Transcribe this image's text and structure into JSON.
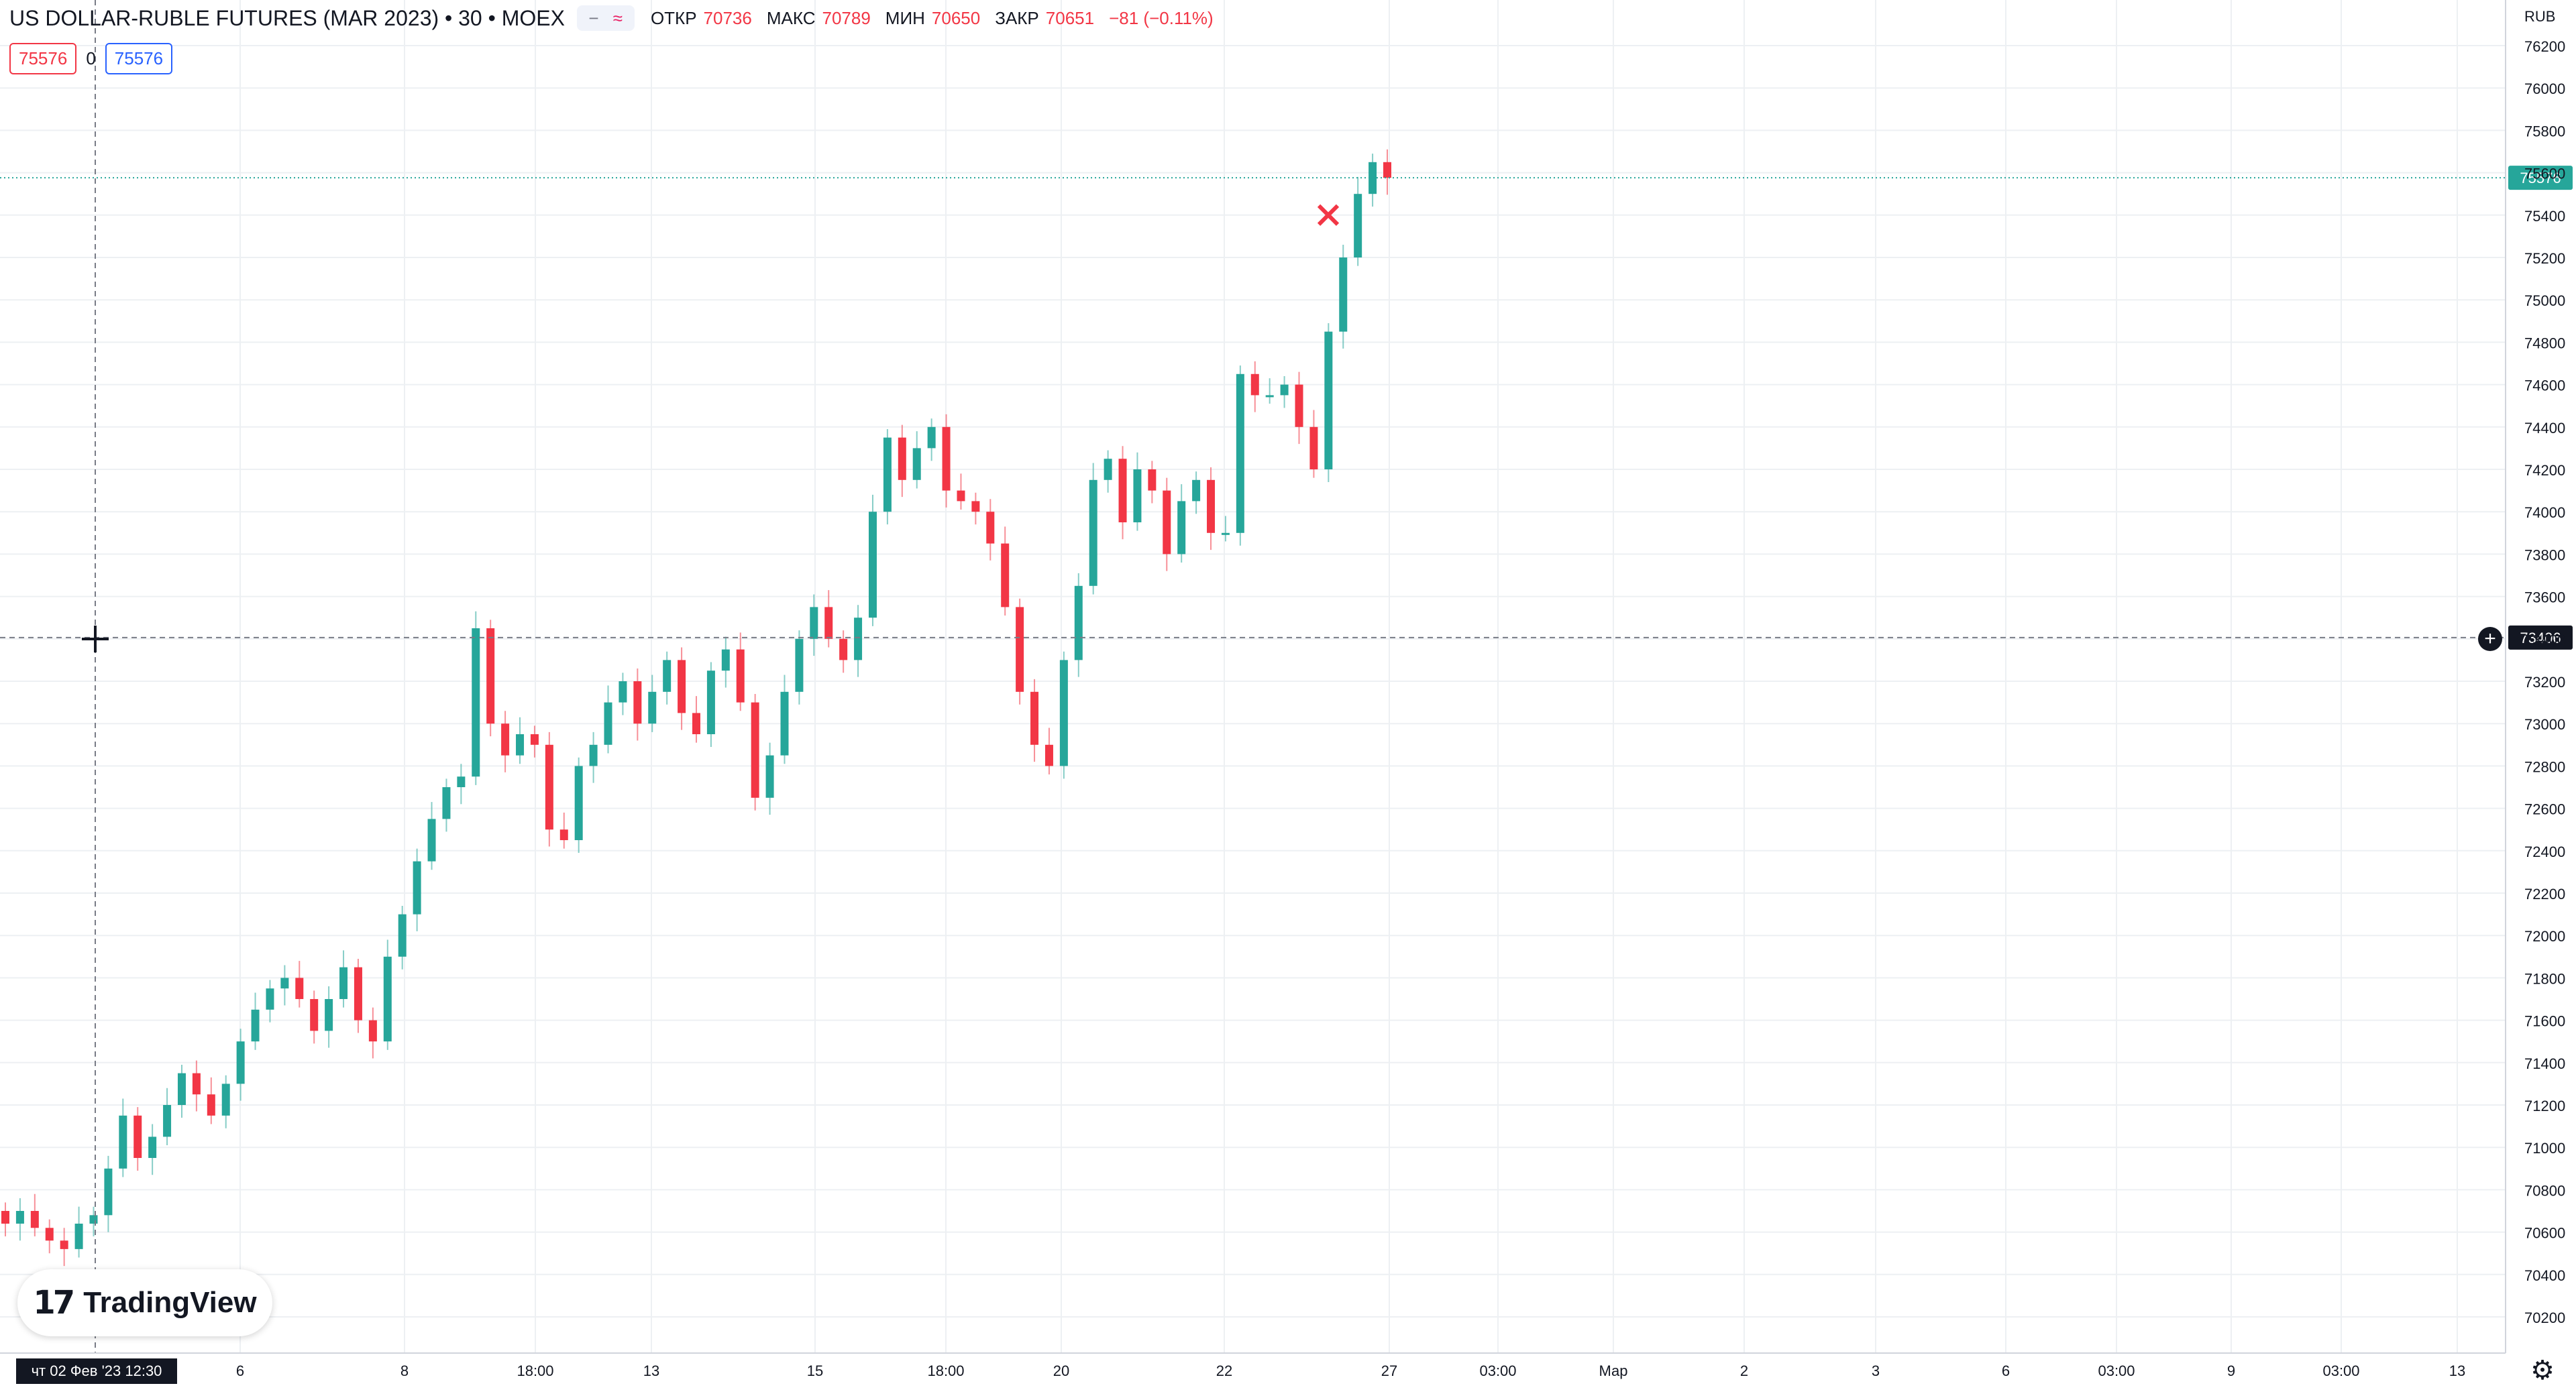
{
  "header": {
    "title": "US DOLLAR-RUBLE FUTURES (MAR 2023) • 30 • MOEX",
    "icons": [
      "minus-icon",
      "wave-icon"
    ],
    "ohlc": [
      {
        "label": "ОТКР",
        "value": "70736"
      },
      {
        "label": "МАКС",
        "value": "70789"
      },
      {
        "label": "МИН",
        "value": "70650"
      },
      {
        "label": "ЗАКР",
        "value": "70651"
      }
    ],
    "change": "−81 (−0.11%)"
  },
  "trade_buttons": {
    "sell": "75576",
    "spread": "0",
    "buy": "75576"
  },
  "currency": "RUB",
  "logo_text": "TradingView",
  "colors": {
    "up": "#26a69a",
    "down": "#f23645",
    "grid": "#edf0f3",
    "accent": "#2962ff"
  },
  "chart_data": {
    "type": "candlestick",
    "title": "US DOLLAR-RUBLE FUTURES (MAR 2023)",
    "interval": "30",
    "exchange": "MOEX",
    "ylim": [
      70000,
      76400
    ],
    "y_ticks": [
      70200,
      70400,
      70600,
      70800,
      71000,
      71200,
      71400,
      71600,
      71800,
      72000,
      72200,
      72400,
      72600,
      72800,
      73000,
      73200,
      73400,
      73600,
      73800,
      74000,
      74200,
      74400,
      74600,
      74800,
      75000,
      75200,
      75400,
      75600,
      75800,
      76000,
      76200
    ],
    "x_ticks": [
      {
        "label": "чт 02 Фев '23   12:30",
        "kind": "cursor"
      },
      {
        "label": "6"
      },
      {
        "label": "8"
      },
      {
        "label": "18:00"
      },
      {
        "label": "13"
      },
      {
        "label": "15"
      },
      {
        "label": "18:00"
      },
      {
        "label": "20"
      },
      {
        "label": "22"
      },
      {
        "label": "27"
      },
      {
        "label": "03:00"
      },
      {
        "label": "Мар"
      },
      {
        "label": "2"
      },
      {
        "label": "3"
      },
      {
        "label": "6"
      },
      {
        "label": "03:00"
      },
      {
        "label": "9"
      },
      {
        "label": "03:00"
      },
      {
        "label": "13"
      }
    ],
    "last_price": 75576,
    "crosshair_price": 73406,
    "marker": {
      "type": "cross",
      "price": 75400
    },
    "series_close": [
      70640,
      70700,
      70620,
      70560,
      70520,
      70640,
      70680,
      70900,
      71150,
      70950,
      71050,
      71200,
      71350,
      71250,
      71150,
      71300,
      71500,
      71650,
      71750,
      71800,
      71700,
      71550,
      71700,
      71850,
      71600,
      71500,
      71900,
      72100,
      72350,
      72550,
      72700,
      72750,
      73450,
      73000,
      72850,
      72950,
      72900,
      72500,
      72450,
      72800,
      72900,
      73100,
      73200,
      73000,
      73150,
      73300,
      73050,
      72950,
      73250,
      73350,
      73100,
      72650,
      72850,
      73150,
      73400,
      73550,
      73400,
      73300,
      73500,
      74000,
      74350,
      74150,
      74300,
      74400,
      74100,
      74050,
      74000,
      73850,
      73550,
      73150,
      72900,
      72800,
      73300,
      73650,
      74150,
      74250,
      73950,
      74200,
      74100,
      73800,
      74050,
      74150,
      73900,
      73900,
      74650,
      74550,
      74550,
      74600,
      74400,
      74200,
      74850,
      75200,
      75500,
      75650,
      75576
    ],
    "x_scale": {
      "start_date": "2023-01-30",
      "cursor_date": "2023-02-02"
    },
    "x_ticks_dates": []
  }
}
